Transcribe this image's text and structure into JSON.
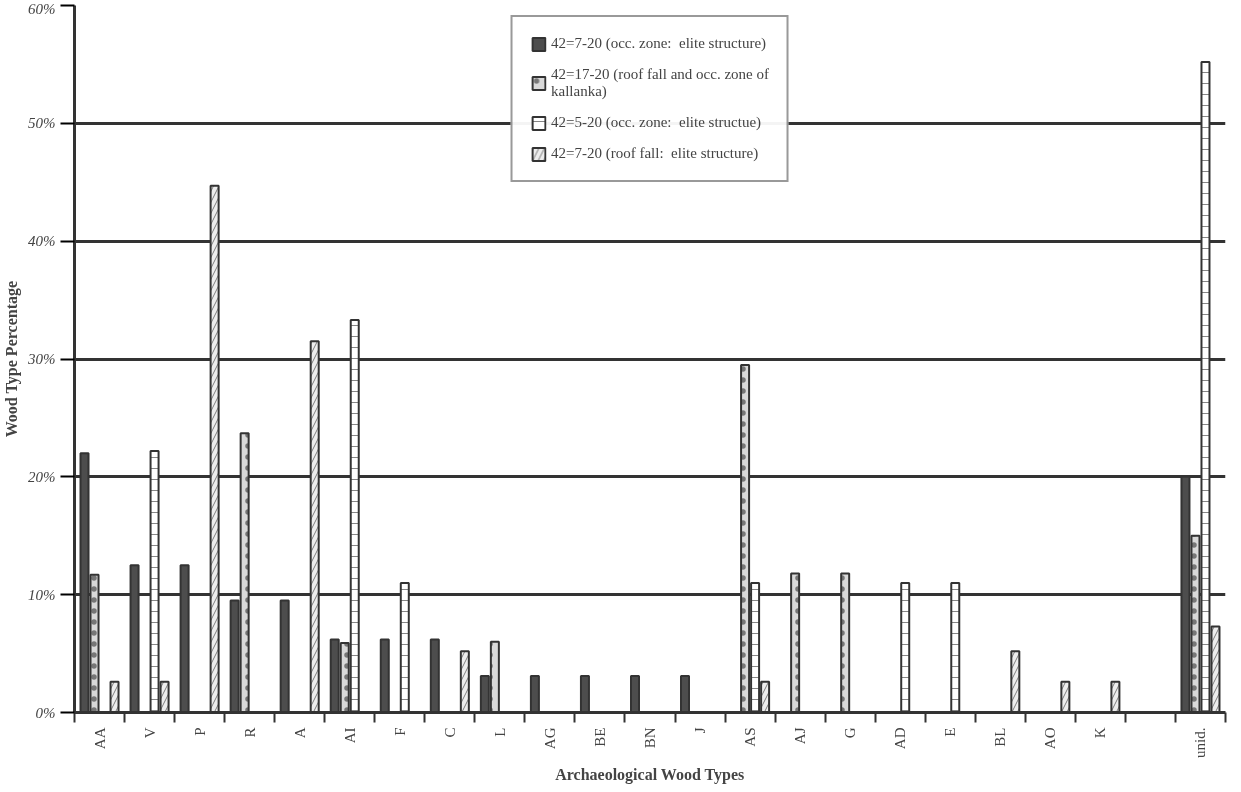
{
  "chart_data": {
    "type": "bar",
    "xlabel": "Archaeological Wood Types",
    "ylabel": "Wood Type Percentage",
    "categories": [
      "AA",
      "V",
      "P",
      "R",
      "A",
      "AI",
      "F",
      "C",
      "L",
      "AG",
      "BE",
      "BN",
      "J",
      "AS",
      "AJ",
      "G",
      "AD",
      "E",
      "BL",
      "AO",
      "K",
      null,
      "unid."
    ],
    "series": [
      {
        "name": "42=7-20 (occ. zone:  elite structure)",
        "color": "#4d4d4d",
        "values": [
          22,
          12.5,
          12.5,
          9.5,
          9.5,
          6.2,
          6.2,
          6.2,
          3.1,
          3.1,
          3.1,
          3.1,
          3.1,
          null,
          null,
          null,
          null,
          null,
          null,
          null,
          null,
          null,
          20
        ]
      },
      {
        "name": "42=17-20 (roof fall and occ. zone of\nkallanka)",
        "color": "#d9d9d9",
        "values": [
          11.7,
          null,
          null,
          23.7,
          null,
          5.9,
          null,
          null,
          6,
          null,
          null,
          null,
          null,
          29.5,
          11.8,
          11.8,
          null,
          null,
          null,
          null,
          null,
          null,
          15
        ]
      },
      {
        "name": "42=5-20 (occ. zone:  elite structue)",
        "color": "#ffffff",
        "values": [
          null,
          22.2,
          null,
          null,
          null,
          33.3,
          11,
          null,
          null,
          null,
          null,
          null,
          null,
          11,
          null,
          null,
          11,
          11,
          null,
          null,
          null,
          null,
          55.2
        ]
      },
      {
        "name": "42=7-20 (roof fall:  elite structure)",
        "color": "#ededed",
        "values": [
          2.6,
          2.6,
          44.7,
          null,
          31.5,
          null,
          null,
          5.2,
          null,
          null,
          null,
          null,
          null,
          2.6,
          null,
          null,
          null,
          null,
          5.2,
          2.6,
          2.6,
          null,
          7.3
        ]
      }
    ],
    "ylim": [
      0,
      60
    ],
    "yticks": [
      {
        "value": 0,
        "label": "0%"
      },
      {
        "value": 10,
        "label": "10%"
      },
      {
        "value": 20,
        "label": "20%"
      },
      {
        "value": 30,
        "label": "30%"
      },
      {
        "value": 40,
        "label": "40%"
      },
      {
        "value": 50,
        "label": "50%"
      },
      {
        "value": 60,
        "label": "60%"
      }
    ],
    "grid": "y",
    "legend": "top"
  }
}
